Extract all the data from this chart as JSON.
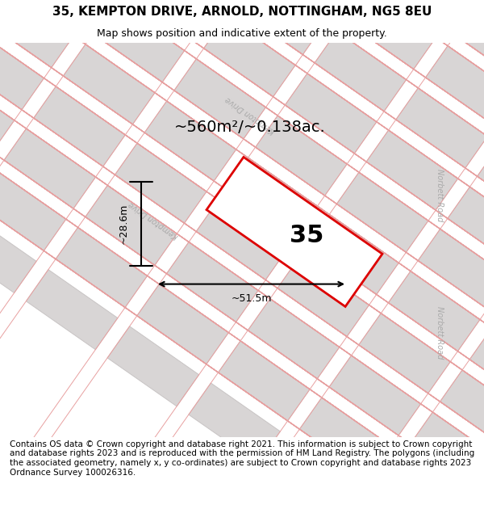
{
  "title_line1": "35, KEMPTON DRIVE, ARNOLD, NOTTINGHAM, NG5 8EU",
  "title_line2": "Map shows position and indicative extent of the property.",
  "footer_text": "Contains OS data © Crown copyright and database right 2021. This information is subject to Crown copyright and database rights 2023 and is reproduced with the permission of HM Land Registry. The polygons (including the associated geometry, namely x, y co-ordinates) are subject to Crown copyright and database rights 2023 Ordnance Survey 100026316.",
  "area_label": "~560m²/~0.138ac.",
  "width_label": "~51.5m",
  "height_label": "~28.6m",
  "plot_number": "35",
  "bg_color": "#f0eeee",
  "map_bg": "#e8e6e6",
  "block_color": "#d8d5d5",
  "block_edge_color": "#c8c4c4",
  "road_line_color": "#e8a0a0",
  "plot_fill": "#ffffff",
  "plot_edge_color": "#dd0000",
  "plot_edge_width": 2.0,
  "title_fontsize": 11,
  "subtitle_fontsize": 9,
  "footer_fontsize": 7.5,
  "road_label_color": "#aaaaaa",
  "road_label_fontsize": 7
}
